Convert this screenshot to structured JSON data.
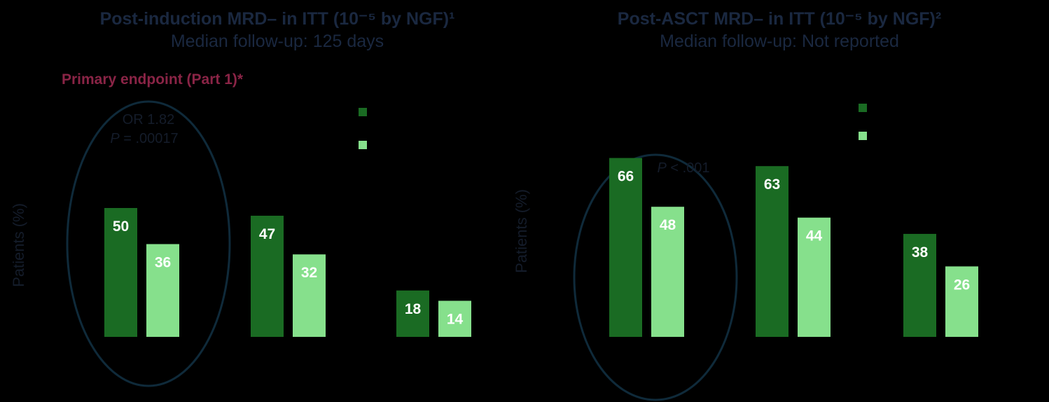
{
  "colors": {
    "dark_green": "#1a6b23",
    "light_green": "#86e08c",
    "ellipse": "#0f2a3a",
    "title": "#1a2840",
    "endpoint": "#8a2446"
  },
  "chart_data": [
    {
      "type": "bar",
      "title": "Post-induction MRD– in ITT (10⁻⁵ by NGF)¹",
      "subtitle": "Median follow-up: 125 days",
      "annotation": "Primary endpoint (Part 1)*",
      "ylabel": "Patients (%)",
      "ylim": [
        0,
        100
      ],
      "grid": false,
      "legend": {
        "position": "top-right",
        "entries": [
          "",
          ""
        ]
      },
      "categories": [
        "",
        "",
        ""
      ],
      "series": [
        {
          "values": [
            50,
            47,
            18
          ]
        },
        {
          "values": [
            36,
            32,
            14
          ]
        }
      ],
      "stats": {
        "or_text": "OR 1.82",
        "p_italic": "P",
        "p_rest": " = .00017"
      }
    },
    {
      "type": "bar",
      "title": "Post-ASCT MRD– in ITT (10⁻⁵ by NGF)²",
      "subtitle": "Median follow-up: Not reported",
      "ylabel": "Patients (%)",
      "ylim": [
        0,
        100
      ],
      "grid": false,
      "legend": {
        "position": "top-right",
        "entries": [
          "",
          ""
        ]
      },
      "categories": [
        "",
        "",
        ""
      ],
      "series": [
        {
          "values": [
            66,
            63,
            38
          ]
        },
        {
          "values": [
            48,
            44,
            26
          ]
        }
      ],
      "stats": {
        "p_italic": "P",
        "p_rest": " < .001"
      }
    }
  ]
}
